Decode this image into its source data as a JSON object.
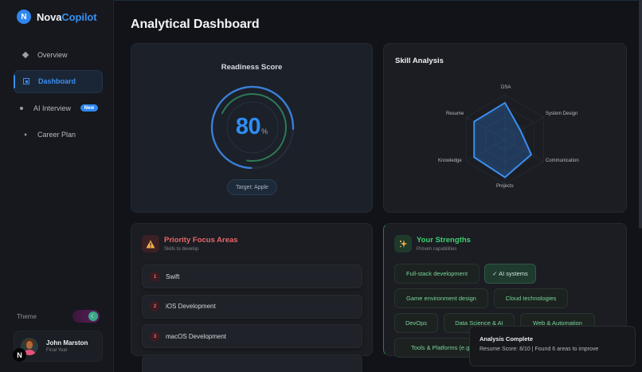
{
  "brand": {
    "logo_letter": "N",
    "name_primary": "Nova",
    "name_accent": "Copilot"
  },
  "sidebar": {
    "items": [
      {
        "label": "Overview",
        "icon": "diamond-icon",
        "active": false
      },
      {
        "label": "Dashboard",
        "icon": "square-icon",
        "active": true
      },
      {
        "label": "AI Interview",
        "icon": "dot-icon",
        "active": false,
        "badge": "New"
      },
      {
        "label": "Career Plan",
        "icon": "triangle-icon",
        "active": false
      }
    ],
    "theme_label": "Theme",
    "theme_toggle_icon": "moon-icon",
    "profile": {
      "name": "John Marston",
      "subtitle": "Final Year"
    },
    "floating_badge": "N"
  },
  "main": {
    "title": "Analytical Dashboard",
    "readiness": {
      "title": "Readiness Score",
      "value": "80",
      "unit": "%",
      "target": "Target: Apple",
      "colors": {
        "outer": "#3a7fd6",
        "middle": "#2e7a55",
        "number": "#2f8df2"
      }
    },
    "skill_analysis": {
      "title": "Skill Analysis",
      "axes": [
        "DSA",
        "System Design",
        "Communication",
        "Projects",
        "Knowledge",
        "Resume"
      ]
    },
    "priority": {
      "title": "Priority Focus Areas",
      "subtitle": "Skills to develop",
      "icon": "warning-icon",
      "items": [
        {
          "num": "1",
          "label": "Swift"
        },
        {
          "num": "2",
          "label": "iOS Development"
        },
        {
          "num": "3",
          "label": "macOS Development"
        }
      ]
    },
    "strengths": {
      "title": "Your Strengths",
      "subtitle": "Proven capabilities",
      "icon": "sparkles-icon",
      "chips": [
        {
          "label": "Full-stack development",
          "selected": false
        },
        {
          "label": "✓  AI systems",
          "selected": true
        },
        {
          "label": "Game environment design",
          "selected": false
        },
        {
          "label": "Cloud technologies",
          "selected": false
        },
        {
          "label": "DevOps",
          "selected": false
        },
        {
          "label": "Data Science & AI",
          "selected": false
        },
        {
          "label": "Web & Automation",
          "selected": false
        },
        {
          "label": "Tools & Platforms (e.g",
          "selected": false
        }
      ]
    }
  },
  "toast": {
    "title": "Analysis Complete",
    "message": "Resume Score: 8/10 | Found 6 areas to improve"
  },
  "chart_data": [
    {
      "type": "radar",
      "title": "Skill Analysis",
      "categories": [
        "DSA",
        "System Design",
        "Communication",
        "Projects",
        "Knowledge",
        "Resume"
      ],
      "values": [
        82,
        40,
        68,
        85,
        80,
        80
      ],
      "range": [
        0,
        100
      ],
      "grid": true,
      "color": "#3a8ef0"
    },
    {
      "type": "gauge",
      "title": "Readiness Score",
      "value": 80,
      "unit": "%",
      "annotation": "Target: Apple"
    }
  ]
}
